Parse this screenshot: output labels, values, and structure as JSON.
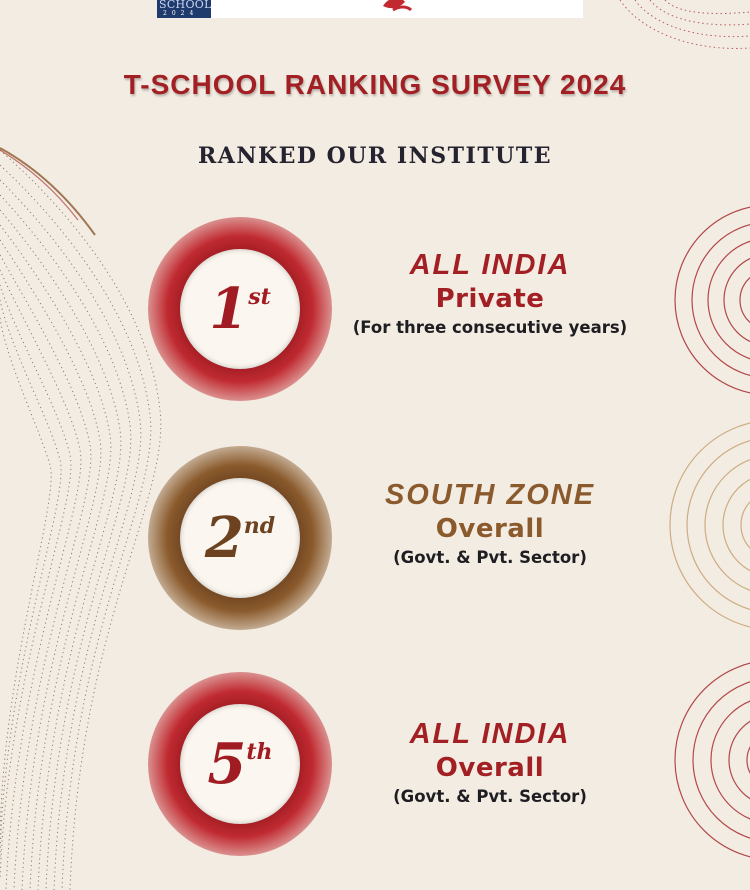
{
  "header": {
    "logo_text": "SCHOOL",
    "logo_year": "2024",
    "title": "T-SCHOOL RANKING SURVEY 2024",
    "subtitle": "RANKED OUR INSTITUTE"
  },
  "rankings": [
    {
      "rank_number": "1",
      "rank_suffix": "st",
      "heading": "ALL INDIA",
      "category": "Private",
      "note": "(For three consecutive years)"
    },
    {
      "rank_number": "2",
      "rank_suffix": "nd",
      "heading": "SOUTH ZONE",
      "category": "Overall",
      "note": "(Govt. & Pvt. Sector)"
    },
    {
      "rank_number": "5",
      "rank_suffix": "th",
      "heading": "ALL INDIA",
      "category": "Overall",
      "note": "(Govt. & Pvt. Sector)"
    }
  ],
  "colors": {
    "background": "#f3ece2",
    "maroon": "#a21f24",
    "brown": "#8a5a2c",
    "dark_text": "#252330"
  }
}
